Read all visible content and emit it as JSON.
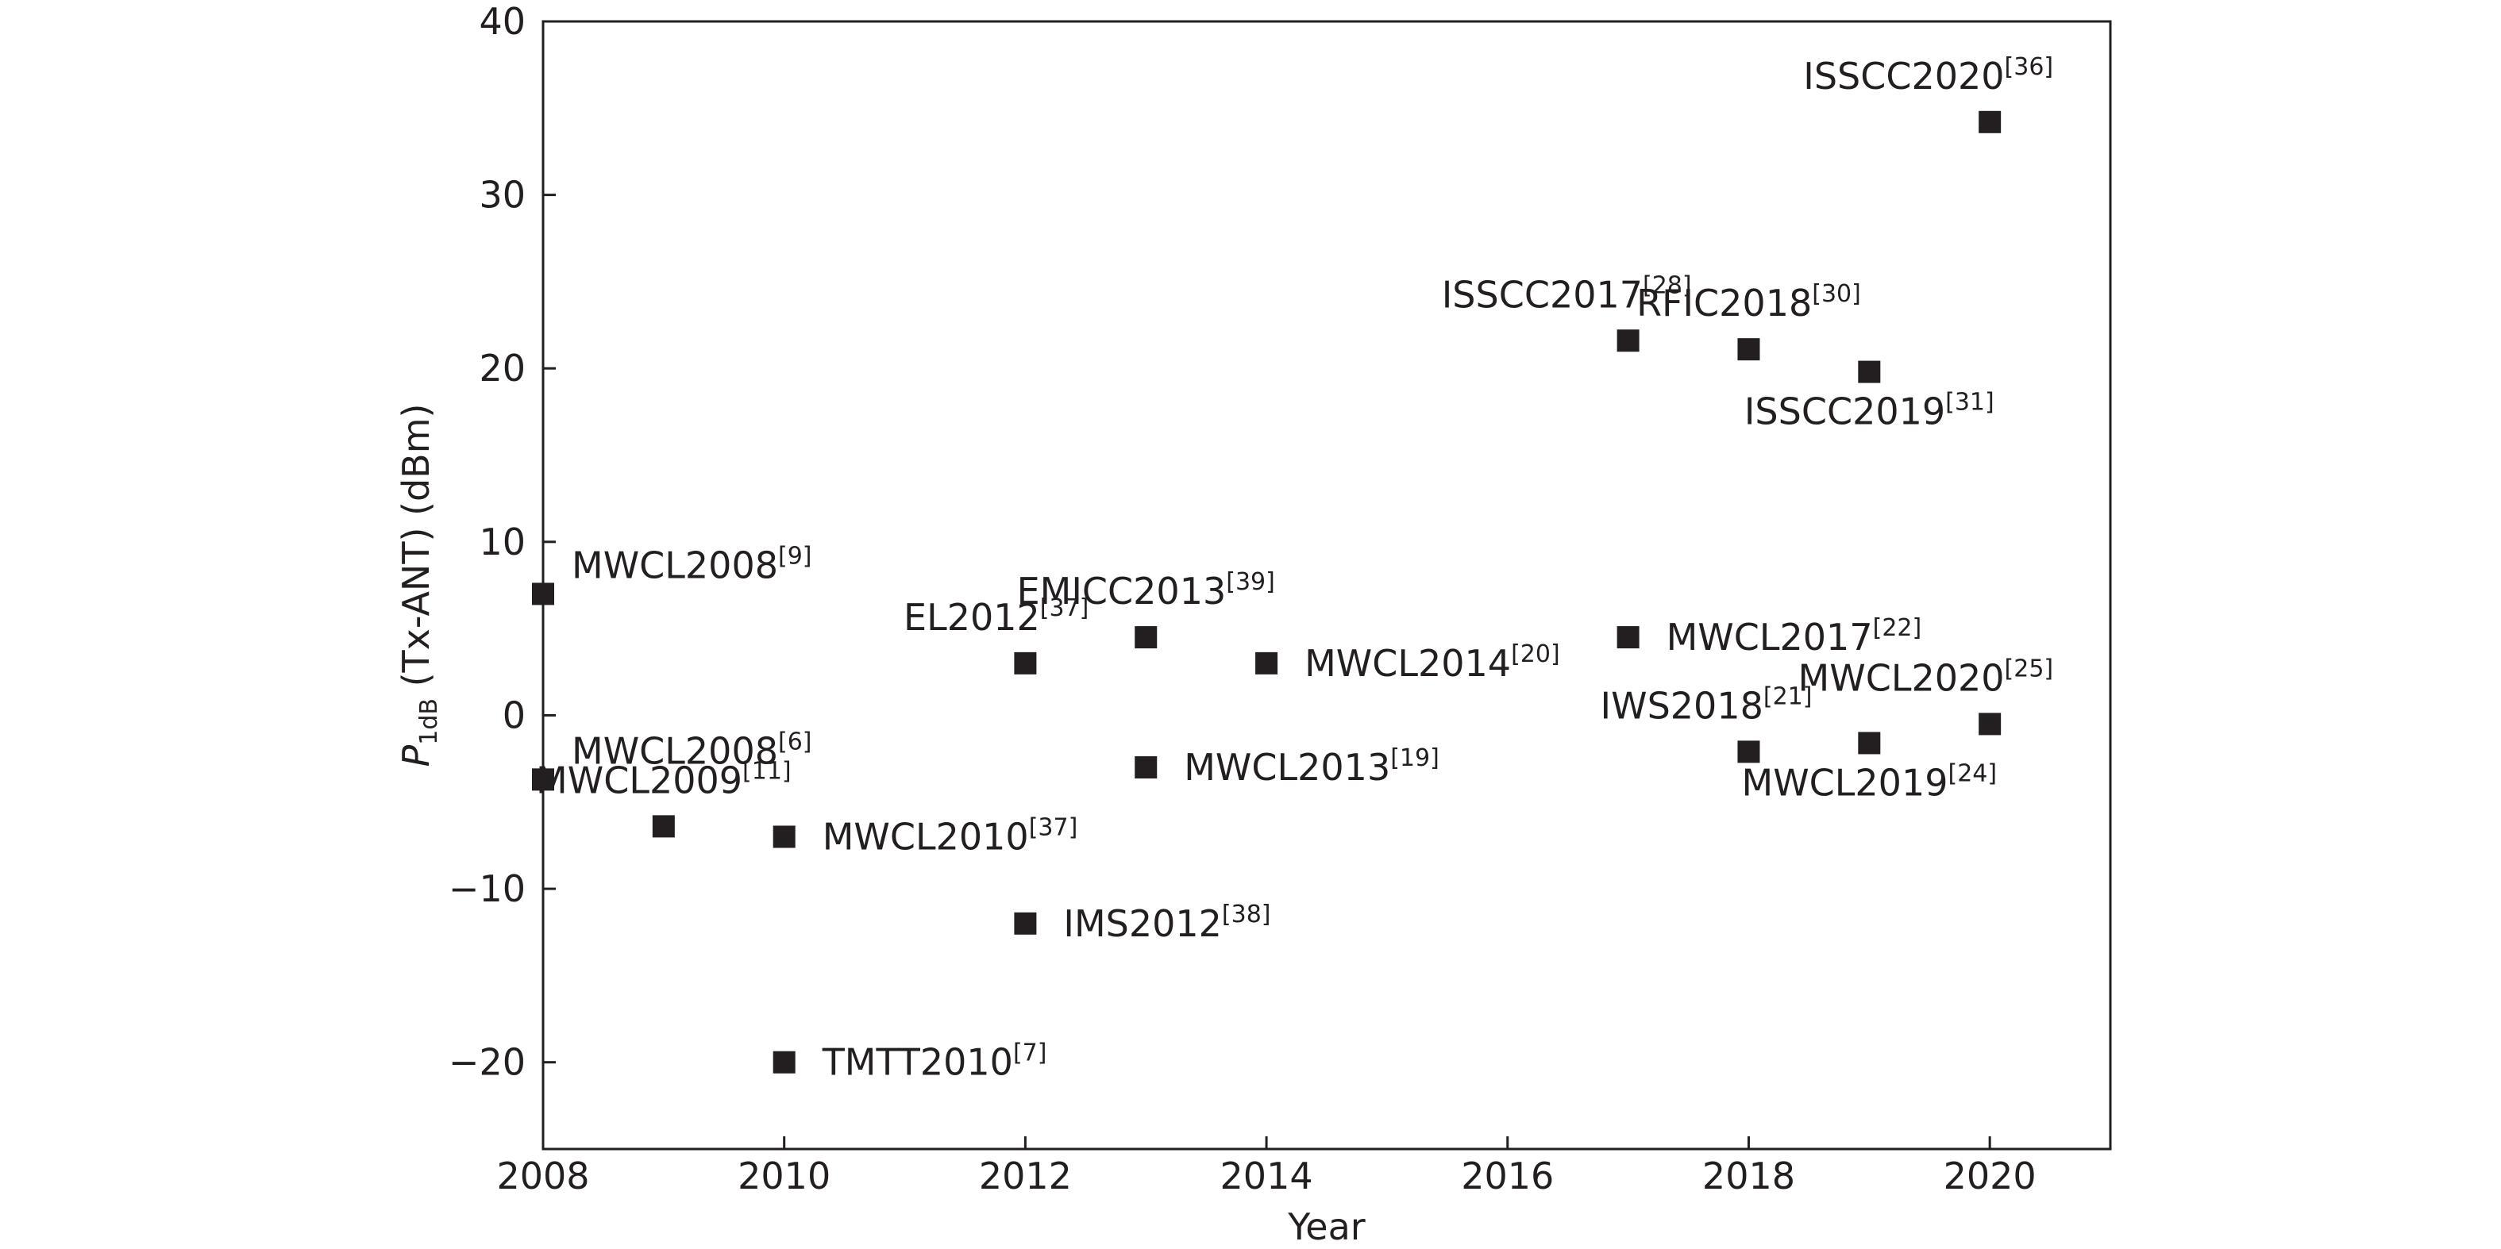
{
  "chart_data": {
    "type": "scatter",
    "xlabel": "Year",
    "ylabel": {
      "symbol": "P",
      "subscript": "1dB",
      "rest": " (Tx-ANT) (dBm)"
    },
    "xlim": [
      2008,
      2021
    ],
    "ylim": [
      -25,
      40
    ],
    "xticks": [
      2008,
      2010,
      2012,
      2014,
      2016,
      2018,
      2020
    ],
    "yticks": [
      -20,
      -10,
      0,
      10,
      20,
      30,
      40
    ],
    "xtick_labels": [
      "2008",
      "2010",
      "2012",
      "2014",
      "2016",
      "2018",
      "2020"
    ],
    "ytick_labels": [
      "−20",
      "−10",
      "0",
      "10",
      "20",
      "30",
      "40"
    ],
    "grid": false,
    "marker": "square",
    "marker_color": "#231f20",
    "points": [
      {
        "label": "MWCL2008",
        "ref": "[9]",
        "x": 2008,
        "y": 7,
        "label_pos": "above-right"
      },
      {
        "label": "MWCL2008",
        "ref": "[6]",
        "x": 2008,
        "y": -3.7,
        "label_pos": "above-right"
      },
      {
        "label": "MWCL2009",
        "ref": "[11]",
        "x": 2009,
        "y": -6.4,
        "label_pos": "above"
      },
      {
        "label": "MWCL2010",
        "ref": "[37]",
        "x": 2010,
        "y": -7,
        "label_pos": "right"
      },
      {
        "label": "TMTT2010",
        "ref": "[7]",
        "x": 2010,
        "y": -20,
        "label_pos": "right"
      },
      {
        "label": "EL2012",
        "ref": "[37]",
        "x": 2012,
        "y": 3,
        "label_pos": "above-left"
      },
      {
        "label": "IMS2012",
        "ref": "[38]",
        "x": 2012,
        "y": -12,
        "label_pos": "right"
      },
      {
        "label": "EMICC2013",
        "ref": "[39]",
        "x": 2013,
        "y": 4.5,
        "label_pos": "above"
      },
      {
        "label": "MWCL2013",
        "ref": "[19]",
        "x": 2013,
        "y": -3,
        "label_pos": "right"
      },
      {
        "label": "MWCL2014",
        "ref": "[20]",
        "x": 2014,
        "y": 3,
        "label_pos": "right"
      },
      {
        "label": "ISSCC2017",
        "ref": "[28]",
        "x": 2017,
        "y": 21.6,
        "label_pos": "above-left"
      },
      {
        "label": "MWCL2017",
        "ref": "[22]",
        "x": 2017,
        "y": 4.5,
        "label_pos": "right"
      },
      {
        "label": "RFIC2018",
        "ref": "[30]",
        "x": 2018,
        "y": 21.1,
        "label_pos": "above"
      },
      {
        "label": "IWS2018",
        "ref": "[21]",
        "x": 2018,
        "y": -2.1,
        "label_pos": "above-left"
      },
      {
        "label": "ISSCC2019",
        "ref": "[31]",
        "x": 2019,
        "y": 19.8,
        "label_pos": "below-left"
      },
      {
        "label": "MWCL2019",
        "ref": "[24]",
        "x": 2019,
        "y": -1.6,
        "label_pos": "below-left"
      },
      {
        "label": "MWCL2020",
        "ref": "[25]",
        "x": 2020,
        "y": -0.5,
        "label_pos": "above-left"
      },
      {
        "label": "ISSCC2020",
        "ref": "[36]",
        "x": 2020,
        "y": 34.2,
        "label_pos": "above-left"
      }
    ]
  }
}
